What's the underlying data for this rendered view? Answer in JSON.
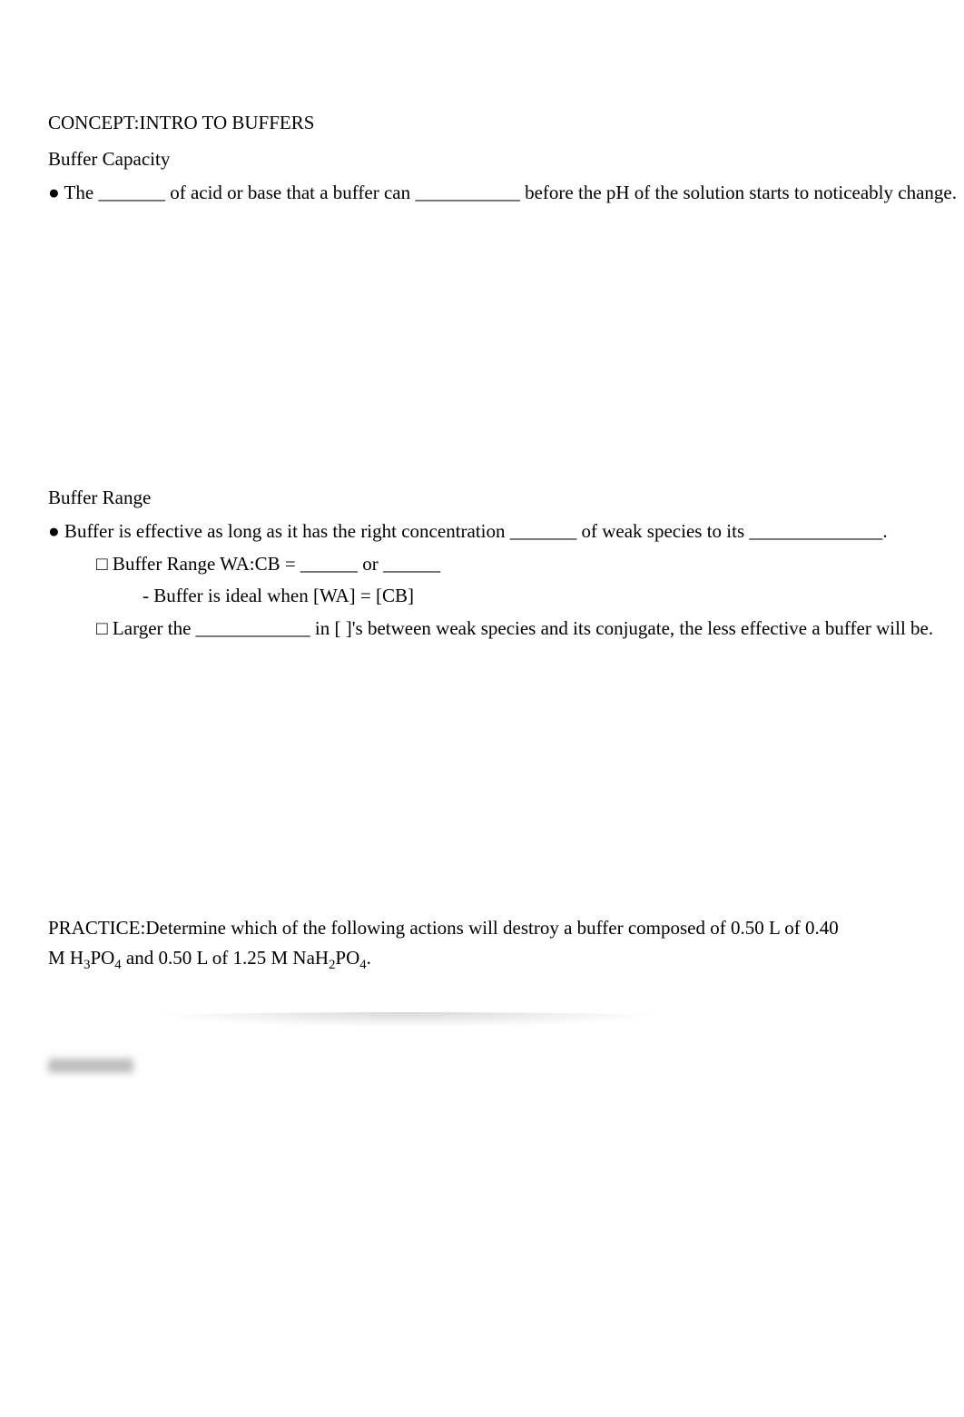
{
  "header": {
    "concept_label": "CONCEPT:",
    "concept_title": "INTRO TO BUFFERS"
  },
  "buffer_capacity": {
    "title": "Buffer Capacity",
    "line1_prefix": "● The ",
    "line1_blank1": "_______",
    "line1_mid": " of acid or base that a buffer can ",
    "line1_blank2": "___________",
    "line1_after": " before the pH of the solution starts to noticeably change."
  },
  "buffer_range": {
    "title": "Buffer Range",
    "line1": "● Buffer is effective as long as it has the right concentration _______ of weak species to its ______________.",
    "sub1": "□ Buffer Range WA:CB = ______ or ______",
    "sub1a": "- Buffer is ideal when [WA] = [CB]",
    "sub2": "□ Larger the ____________ in [ ]'s between weak species and its conjugate, the less effective a buffer will be."
  },
  "practice": {
    "label": "PRACTICE:",
    "text_before": "Determine which of the following actions will destroy a buffer composed of 0.50 L of 0.40 M H",
    "h3po4_3": "3",
    "h3po4_po": "PO",
    "h3po4_4": "4",
    "mid": " and 0.50 L of 1.25 M NaH",
    "nah2po4_2": "2",
    "nah2po4_po": "PO",
    "nah2po4_4": "4",
    "after": "."
  }
}
